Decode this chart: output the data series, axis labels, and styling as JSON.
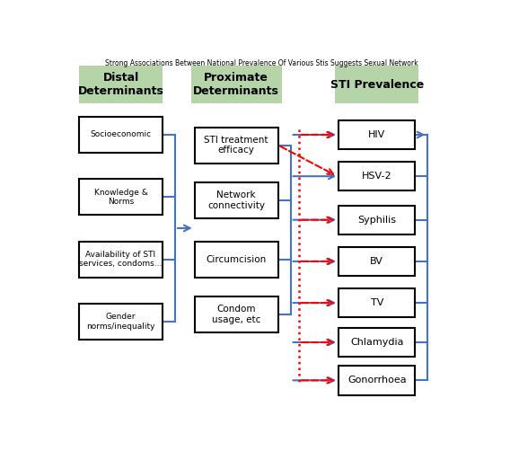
{
  "title": "Strong Associations Between National Prevalence Of Various Stis Suggests Sexual Network",
  "bg_color": "#ffffff",
  "header_bg": "#b5d4a8",
  "headers": [
    "Distal\nDeterminants",
    "Proximate\nDeterminants",
    "STI Prevalence"
  ],
  "distal_boxes": [
    {
      "label": "Socioeconomic"
    },
    {
      "label": "Knowledge &\nNorms"
    },
    {
      "label": "Availability of STI\nservices, condoms..."
    },
    {
      "label": "Gender\nnorms/inequality"
    }
  ],
  "proximate_boxes": [
    {
      "label": "STI treatment\nefficacy"
    },
    {
      "label": "Network\nconnectivity"
    },
    {
      "label": "Circumcision"
    },
    {
      "label": "Condom\nusage, etc"
    }
  ],
  "sti_boxes": [
    {
      "label": "HIV"
    },
    {
      "label": "HSV-2"
    },
    {
      "label": "Syphilis"
    },
    {
      "label": "BV"
    },
    {
      "label": "TV"
    },
    {
      "label": "Chlamydia"
    },
    {
      "label": "Gonorrhoea"
    }
  ],
  "blue_color": "#4472C4",
  "red_color": "#FF0000",
  "box_color": "#000000",
  "text_color": "#000000"
}
